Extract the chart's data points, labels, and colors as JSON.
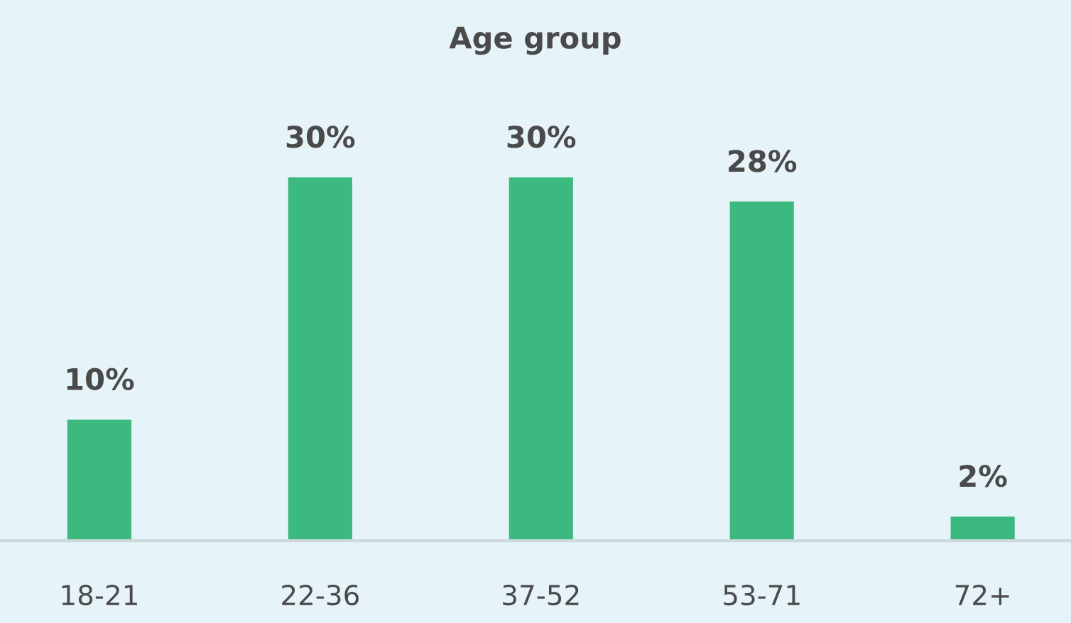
{
  "chart_data": {
    "type": "bar",
    "title": "Age group",
    "categories": [
      "18-21",
      "22-36",
      "37-52",
      "53-71",
      "72+"
    ],
    "values": [
      10,
      30,
      30,
      28,
      2
    ],
    "value_labels": [
      "10%",
      "30%",
      "30%",
      "28%",
      "2%"
    ],
    "color": "#3bb97f",
    "grid": false,
    "legend": false
  }
}
